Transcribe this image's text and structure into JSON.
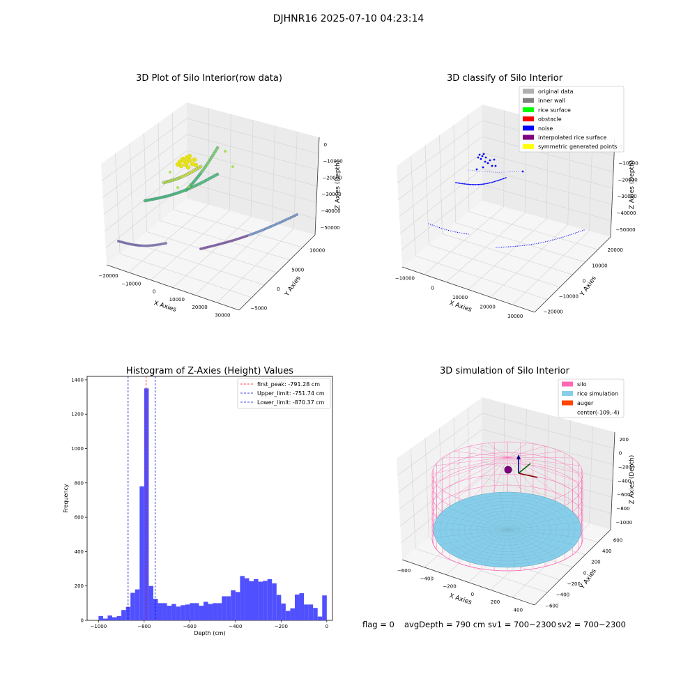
{
  "figure": {
    "suptitle": "DJHNR16 2025-07-10 04:23:14",
    "status_line": {
      "flag": "flag = 0",
      "avg_depth": "avgDepth = 790 cm",
      "sv1": "sv1 = 700~2300",
      "sv2": "sv2 = 700~2300"
    }
  },
  "colors": {
    "hist_bar": "#5050ff",
    "peak_line": "#ff0000",
    "limit_line": "#0000cc",
    "silo": "#ff69b4",
    "rice": "#87ceeb",
    "auger": "#ff4500",
    "noise": "#0000ff",
    "viridis_purple": "#7b5a9a",
    "viridis_green": "#3dba6e",
    "viridis_yellow": "#e6e419"
  },
  "chart_data": [
    {
      "type": "scatter",
      "subtype": "3d",
      "title": "3D Plot of Silo Interior(row data)",
      "xlabel": "X Axies",
      "ylabel": "Y Axies",
      "zlabel": "Z Axies (Depth)",
      "xticks": [
        "−20000",
        "−10000",
        "0",
        "10000",
        "20000",
        "30000"
      ],
      "yticks": [
        "−5000",
        "0",
        "5000",
        "10000"
      ],
      "zticks": [
        "0",
        "−10000",
        "−20000",
        "−30000",
        "−40000",
        "−50000"
      ],
      "series": [
        {
          "group": "deep arc left (purple)",
          "approx_z": -50000
        },
        {
          "group": "deep arc right (purple)",
          "approx_z": -45000
        },
        {
          "group": "mid arcs (green)",
          "approx_z": -25000
        },
        {
          "group": "upper cluster (yellow)",
          "approx_z": -10000
        }
      ]
    },
    {
      "type": "scatter",
      "subtype": "3d",
      "title": "3D classify of Silo Interior",
      "xlabel": "X Axies",
      "ylabel": "Y Axies",
      "zlabel": "Z Axies (Depth)",
      "xticks": [
        "−10000",
        "0",
        "10000",
        "20000",
        "30000"
      ],
      "yticks": [
        "−20000",
        "−10000",
        "0",
        "10000",
        "20000"
      ],
      "zticks": [
        "0",
        "−10000",
        "−20000",
        "−30000",
        "−40000",
        "−50000"
      ],
      "legend": {
        "position": "top-right",
        "entries": [
          {
            "label": "original data",
            "color": "#b0b0b0"
          },
          {
            "label": "inner wall",
            "color": "#808080"
          },
          {
            "label": "rice surface",
            "color": "#00ff00"
          },
          {
            "label": "obstacle",
            "color": "#ff0000"
          },
          {
            "label": "noise",
            "color": "#0000ff"
          },
          {
            "label": "interpolated rice surface",
            "color": "#800080"
          },
          {
            "label": "symmetric generated points",
            "color": "#ffff00"
          }
        ]
      }
    },
    {
      "type": "bar",
      "subtype": "histogram",
      "title": "Histogram of Z-Axies (Height) Values",
      "xlabel": "Depth (cm)",
      "ylabel": "Frequency",
      "xlim": [
        -1050,
        25
      ],
      "ylim": [
        0,
        1420
      ],
      "xticks": [
        -1000,
        -800,
        -600,
        -400,
        -200,
        0
      ],
      "yticks": [
        0,
        200,
        400,
        600,
        800,
        1000,
        1200,
        1400
      ],
      "bin_width": 20,
      "bins": [
        {
          "x": -1000,
          "y": 25
        },
        {
          "x": -980,
          "y": 10
        },
        {
          "x": -960,
          "y": 28
        },
        {
          "x": -940,
          "y": 18
        },
        {
          "x": -920,
          "y": 25
        },
        {
          "x": -900,
          "y": 60
        },
        {
          "x": -880,
          "y": 78
        },
        {
          "x": -860,
          "y": 160
        },
        {
          "x": -840,
          "y": 180
        },
        {
          "x": -820,
          "y": 780
        },
        {
          "x": -800,
          "y": 1350
        },
        {
          "x": -780,
          "y": 200
        },
        {
          "x": -760,
          "y": 125
        },
        {
          "x": -740,
          "y": 100
        },
        {
          "x": -720,
          "y": 100
        },
        {
          "x": -700,
          "y": 85
        },
        {
          "x": -680,
          "y": 95
        },
        {
          "x": -660,
          "y": 80
        },
        {
          "x": -640,
          "y": 88
        },
        {
          "x": -620,
          "y": 92
        },
        {
          "x": -600,
          "y": 100
        },
        {
          "x": -580,
          "y": 100
        },
        {
          "x": -560,
          "y": 85
        },
        {
          "x": -540,
          "y": 108
        },
        {
          "x": -520,
          "y": 95
        },
        {
          "x": -500,
          "y": 100
        },
        {
          "x": -480,
          "y": 100
        },
        {
          "x": -460,
          "y": 140
        },
        {
          "x": -440,
          "y": 140
        },
        {
          "x": -420,
          "y": 175
        },
        {
          "x": -400,
          "y": 165
        },
        {
          "x": -380,
          "y": 258
        },
        {
          "x": -360,
          "y": 245
        },
        {
          "x": -340,
          "y": 228
        },
        {
          "x": -320,
          "y": 240
        },
        {
          "x": -300,
          "y": 225
        },
        {
          "x": -280,
          "y": 230
        },
        {
          "x": -260,
          "y": 240
        },
        {
          "x": -240,
          "y": 215
        },
        {
          "x": -220,
          "y": 148
        },
        {
          "x": -200,
          "y": 98
        },
        {
          "x": -180,
          "y": 55
        },
        {
          "x": -160,
          "y": 70
        },
        {
          "x": -140,
          "y": 150
        },
        {
          "x": -120,
          "y": 158
        },
        {
          "x": -100,
          "y": 92
        },
        {
          "x": -80,
          "y": 92
        },
        {
          "x": -60,
          "y": 72
        },
        {
          "x": -40,
          "y": 22
        },
        {
          "x": -20,
          "y": 145
        }
      ],
      "vlines": [
        {
          "x": -791.28,
          "style": "peak",
          "label": "first_peak: -791.28 cm"
        },
        {
          "x": -751.74,
          "style": "limit",
          "label": "Upper_limit: -751.74 cm"
        },
        {
          "x": -870.37,
          "style": "limit",
          "label": "Lower_limit: -870.37 cm"
        }
      ],
      "legend": {
        "position": "top-right"
      }
    },
    {
      "type": "scatter",
      "subtype": "3d-surface",
      "title": "3D simulation of Silo Interior",
      "xlabel": "X Axies",
      "ylabel": "Y Axies",
      "zlabel": "Z Axies (Depth)",
      "xticks": [
        "−600",
        "−400",
        "−200",
        "0",
        "200",
        "400"
      ],
      "yticks": [
        "−600",
        "−400",
        "−200",
        "0",
        "200",
        "400",
        "600"
      ],
      "zticks": [
        "200",
        "0",
        "−200",
        "−400",
        "−600",
        "−800",
        "−1000"
      ],
      "legend": {
        "position": "top-right",
        "entries": [
          {
            "label": "silo",
            "color": "#ff69b4"
          },
          {
            "label": "rice simulation",
            "color": "#87ceeb"
          },
          {
            "label": "auger",
            "color": "#ff4500"
          },
          {
            "label": "center(-109,-4)",
            "color": ""
          }
        ]
      }
    }
  ]
}
